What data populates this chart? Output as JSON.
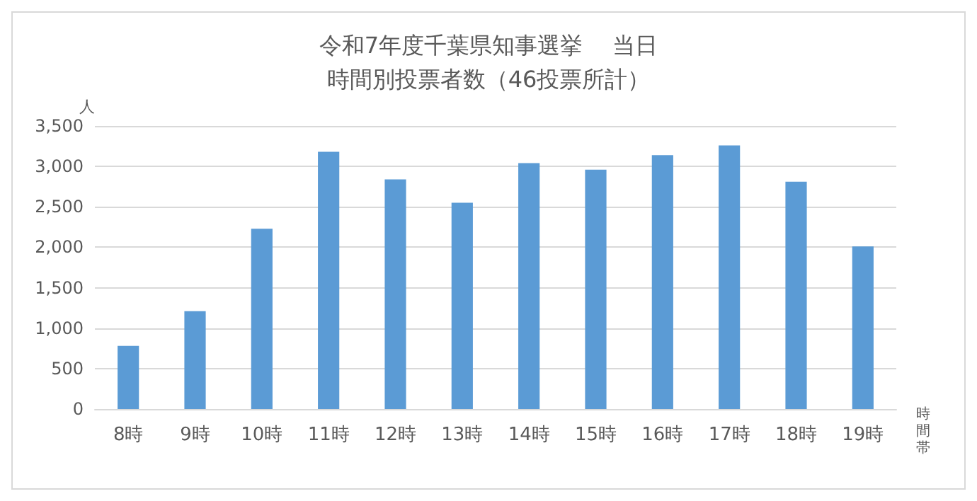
{
  "chart_data": {
    "type": "bar",
    "title": "令和7年度千葉県知事選挙　 当日",
    "subtitle": "時間別投票者数（46投票所計）",
    "ylabel": "人",
    "xlabel": "時間帯",
    "categories": [
      "8時",
      "9時",
      "10時",
      "11時",
      "12時",
      "13時",
      "14時",
      "15時",
      "16時",
      "17時",
      "18時",
      "19時"
    ],
    "values": [
      780,
      1210,
      2230,
      3180,
      2840,
      2550,
      3040,
      2960,
      3140,
      3260,
      2810,
      2010
    ],
    "color": "#5b9bd5",
    "ylim": [
      0,
      3500
    ],
    "yticks": [
      0,
      500,
      {
        "value": 1000,
        "label": "1,000"
      },
      {
        "value": 1500,
        "label": "1,500"
      },
      {
        "value": 2000,
        "label": "2,000"
      },
      {
        "value": 2500,
        "label": "2,500"
      },
      {
        "value": 3000,
        "label": "3,000"
      },
      {
        "value": 3500,
        "label": "3,500"
      }
    ],
    "grid": "y"
  }
}
